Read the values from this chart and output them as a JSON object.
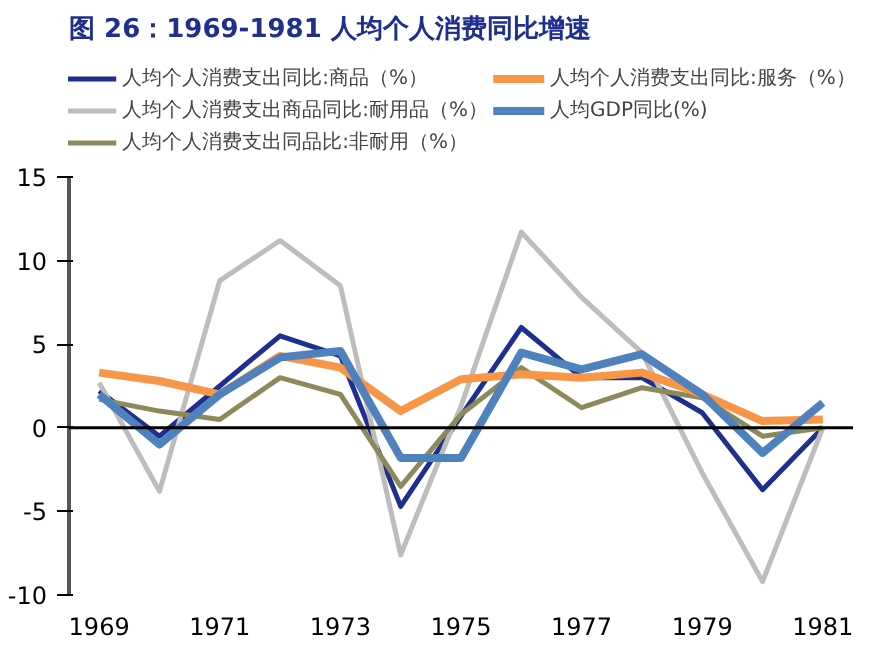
{
  "chart_data": {
    "type": "line",
    "title": "图 26：1969-1981 人均个人消费同比增速",
    "x": [
      1969,
      1970,
      1971,
      1972,
      1973,
      1974,
      1975,
      1976,
      1977,
      1978,
      1979,
      1980,
      1981
    ],
    "series": [
      {
        "name": "人均个人消费支出同比:商品（%）",
        "color": "#1f2f8f",
        "values": [
          2.2,
          -0.5,
          2.5,
          5.5,
          4.3,
          -4.7,
          0.7,
          6.0,
          3.0,
          3.0,
          0.9,
          -3.7,
          0
        ]
      },
      {
        "name": "人均个人消费支出商品同比:耐用品（%）",
        "color": "#bdbdbd",
        "values": [
          2.7,
          -3.8,
          8.8,
          11.2,
          8.5,
          -7.6,
          1.3,
          11.7,
          7.8,
          4.5,
          -2.7,
          -9.2,
          0
        ]
      },
      {
        "name": "人均个人消费支出同品比:非耐用（%）",
        "color": "#8c8a5a",
        "values": [
          1.7,
          1.0,
          0.5,
          3.0,
          2.0,
          -3.5,
          0.8,
          3.6,
          1.2,
          2.4,
          1.8,
          -0.5,
          0
        ]
      },
      {
        "name": "人均个人消费支出同比:服务（%）",
        "color": "#f79646",
        "values": [
          3.3,
          2.8,
          2.0,
          4.3,
          3.6,
          1.0,
          2.9,
          3.2,
          3.0,
          3.3,
          2.0,
          0.4,
          0.5
        ]
      },
      {
        "name": "人均GDP同比(%)",
        "color": "#4f81bd",
        "values": [
          2.0,
          -1.0,
          2.0,
          4.2,
          4.6,
          -1.8,
          -1.8,
          4.5,
          3.5,
          4.4,
          2.0,
          -1.5,
          1.5
        ]
      }
    ],
    "xlim": [
      1968.5,
      1981.5
    ],
    "xticks": [
      1969,
      1971,
      1973,
      1975,
      1977,
      1979,
      1981
    ],
    "ylim": [
      -10,
      15
    ],
    "yticks": [
      -10,
      -5,
      0,
      5,
      10,
      15
    ],
    "ref_lines": [
      {
        "axis": "y",
        "value": 0,
        "color": "#000000"
      }
    ],
    "grid": false,
    "legend": "top",
    "line_style": "solid",
    "marker": "none"
  }
}
